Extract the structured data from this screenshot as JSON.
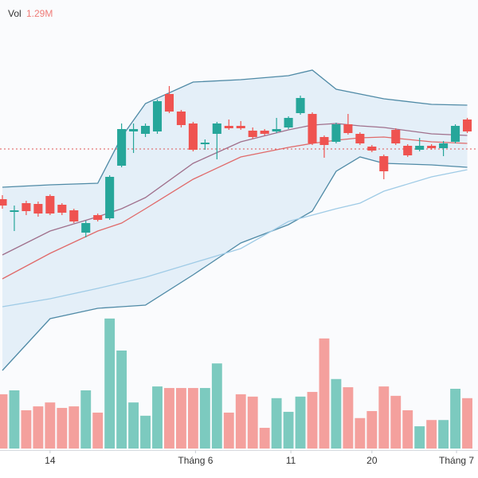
{
  "chart_data": {
    "type": "candlestick",
    "ylim": [
      120,
      600
    ],
    "xlim": [
      -0.2,
      39.9
    ],
    "open": [
      350,
      334,
      345,
      344,
      354,
      343,
      336,
      308,
      330,
      326,
      392,
      435,
      432,
      435,
      482,
      460,
      445,
      419,
      432,
      442,
      442,
      436,
      436,
      435,
      440,
      458,
      457,
      428,
      422,
      444,
      432,
      416,
      404,
      437,
      417,
      412,
      417,
      414,
      422,
      450
    ],
    "close": [
      342,
      336,
      335,
      332,
      332,
      333,
      322,
      320,
      324,
      378,
      438,
      438,
      442,
      473,
      460,
      443,
      412,
      421,
      445,
      439,
      439,
      428,
      432,
      438,
      452,
      477,
      420,
      418,
      444,
      433,
      420,
      411,
      385,
      420,
      405,
      417,
      414,
      420,
      442,
      435
    ],
    "high": [
      355,
      342,
      348,
      347,
      356,
      345,
      338,
      323,
      332,
      380,
      445,
      445,
      445,
      475,
      492,
      462,
      447,
      425,
      447,
      450,
      448,
      440,
      438,
      452,
      454,
      480,
      459,
      430,
      446,
      457,
      434,
      418,
      406,
      439,
      419,
      427,
      419,
      423,
      444,
      452
    ],
    "low": [
      338,
      310,
      330,
      328,
      330,
      330,
      320,
      302,
      322,
      324,
      390,
      408,
      428,
      432,
      458,
      440,
      410,
      412,
      400,
      437,
      437,
      426,
      430,
      433,
      438,
      456,
      418,
      402,
      420,
      431,
      418,
      409,
      375,
      418,
      403,
      410,
      412,
      404,
      420,
      433
    ],
    "up_color": "#26a69a",
    "down_color": "#ef5350",
    "price_line": 413,
    "price_line_color": "#e05555",
    "lines": {
      "x": [
        0,
        4,
        8,
        10,
        12,
        16,
        20,
        24,
        26,
        28,
        30,
        32,
        36,
        39
      ],
      "band_fill": "#e4eff8",
      "series": [
        {
          "color": "#4f8aa6",
          "values": [
            365,
            368,
            370,
            428,
            470,
            497,
            500,
            505,
            512,
            488,
            482,
            476,
            469,
            468
          ]
        },
        {
          "color": "#4f8aa6",
          "values": [
            135,
            200,
            213,
            215,
            217,
            255,
            295,
            318,
            335,
            385,
            403,
            395,
            393,
            390
          ]
        },
        {
          "color": "#a0708c",
          "values": [
            280,
            310,
            328,
            338,
            352,
            395,
            422,
            437,
            443,
            445,
            442,
            440,
            432,
            430
          ]
        },
        {
          "color": "#e06a6a",
          "values": [
            250,
            282,
            310,
            320,
            338,
            375,
            403,
            415,
            420,
            424,
            427,
            428,
            422,
            420
          ]
        },
        {
          "color": "#9fcbe6",
          "values": [
            215,
            225,
            238,
            245,
            252,
            270,
            288,
            322,
            330,
            338,
            345,
            360,
            378,
            387
          ]
        }
      ]
    },
    "volume": {
      "label": "Vol",
      "display": {
        "value": 1.29,
        "label": "1.29M"
      },
      "ylim": [
        0,
        3.5
      ],
      "up_color": "#7ccabf",
      "down_color": "#f4a09d",
      "values": [
        1.39,
        1.49,
        0.98,
        1.08,
        1.18,
        1.04,
        1.08,
        1.49,
        0.92,
        3.33,
        2.51,
        1.18,
        0.84,
        1.59,
        1.55,
        1.55,
        1.55,
        1.55,
        2.18,
        0.92,
        1.39,
        1.33,
        0.53,
        1.29,
        0.94,
        1.33,
        1.45,
        2.82,
        1.78,
        1.57,
        0.78,
        0.96,
        1.59,
        1.35,
        0.98,
        0.57,
        0.73,
        0.73,
        1.53,
        1.29
      ]
    },
    "xticks": [
      {
        "value": 4,
        "label": "14"
      },
      {
        "value": 16.2,
        "label": "Tháng 6"
      },
      {
        "value": 24.2,
        "label": "11"
      },
      {
        "value": 31,
        "label": "20"
      },
      {
        "value": 38.1,
        "label": "Tháng 7"
      }
    ]
  }
}
